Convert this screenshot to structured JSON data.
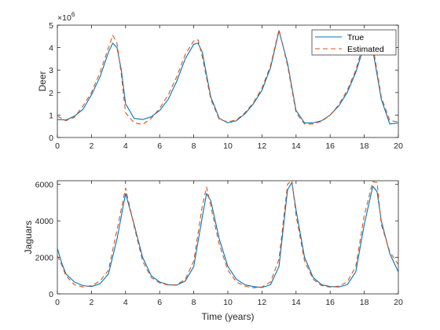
{
  "chart_data": [
    {
      "type": "line",
      "ylabel": "Deer",
      "xlabel": "",
      "y_exponent_label": "×10",
      "y_exponent_power": "6",
      "xlim": [
        0,
        20
      ],
      "ylim": [
        0,
        5000000
      ],
      "xticks": [
        0,
        2,
        4,
        6,
        8,
        10,
        12,
        14,
        16,
        18,
        20
      ],
      "yticks": [
        0,
        1000000,
        2000000,
        3000000,
        4000000,
        5000000
      ],
      "ytick_labels": [
        "0",
        "1",
        "2",
        "3",
        "4",
        "5"
      ],
      "legend_position": "top-right",
      "legend": [
        "True",
        "Estimated"
      ],
      "series": [
        {
          "name": "True",
          "color": "#0072BD",
          "style": "solid",
          "x": [
            0,
            0.5,
            1,
            1.5,
            2,
            2.5,
            3,
            3.25,
            3.5,
            3.75,
            4,
            4.5,
            5,
            5.5,
            6,
            6.5,
            7,
            7.5,
            8,
            8.25,
            8.5,
            9,
            9.5,
            10,
            10.5,
            11,
            11.5,
            12,
            12.5,
            13,
            13.5,
            14,
            14.5,
            15,
            15.5,
            16,
            16.5,
            17,
            17.5,
            18,
            18.5,
            19,
            19.5,
            20
          ],
          "y": [
            800000,
            780000,
            950000,
            1250000,
            1900000,
            2700000,
            3800000,
            4200000,
            4000000,
            3000000,
            1500000,
            850000,
            800000,
            920000,
            1200000,
            1700000,
            2500000,
            3500000,
            4150000,
            4200000,
            3800000,
            1800000,
            850000,
            650000,
            750000,
            1050000,
            1500000,
            2100000,
            3100000,
            4750000,
            3300000,
            1200000,
            650000,
            650000,
            750000,
            1000000,
            1400000,
            2000000,
            2900000,
            4100000,
            3900000,
            1700000,
            600000,
            650000
          ]
        },
        {
          "name": "Estimated",
          "color": "#D95319",
          "style": "dashed",
          "x": [
            0,
            0.5,
            1,
            1.5,
            2,
            2.5,
            3,
            3.25,
            3.5,
            3.75,
            4,
            4.5,
            5,
            5.5,
            6,
            6.5,
            7,
            7.5,
            8,
            8.25,
            8.5,
            9,
            9.5,
            10,
            10.5,
            11,
            11.5,
            12,
            12.5,
            13,
            13.5,
            14,
            14.5,
            15,
            15.5,
            16,
            16.5,
            17,
            17.5,
            18,
            18.5,
            19,
            19.5,
            20
          ],
          "y": [
            950000,
            750000,
            900000,
            1400000,
            2000000,
            2900000,
            4000000,
            4550000,
            4200000,
            2800000,
            1100000,
            650000,
            580000,
            850000,
            1300000,
            1900000,
            2700000,
            3700000,
            4300000,
            4350000,
            3600000,
            1700000,
            800000,
            700000,
            780000,
            1100000,
            1550000,
            2200000,
            3200000,
            4800000,
            3200000,
            1100000,
            600000,
            600000,
            720000,
            1000000,
            1450000,
            2100000,
            3000000,
            4300000,
            4100000,
            1800000,
            750000,
            700000
          ]
        }
      ]
    },
    {
      "type": "line",
      "ylabel": "Jaguars",
      "xlabel": "Time (years)",
      "xlim": [
        0,
        20
      ],
      "ylim": [
        0,
        6200
      ],
      "xticks": [
        0,
        2,
        4,
        6,
        8,
        10,
        12,
        14,
        16,
        18,
        20
      ],
      "yticks": [
        0,
        2000,
        4000,
        6000
      ],
      "ytick_labels": [
        "0",
        "2000",
        "4000",
        "6000"
      ],
      "series": [
        {
          "name": "True",
          "color": "#0072BD",
          "style": "solid",
          "x": [
            0,
            0.25,
            0.5,
            1,
            1.5,
            2,
            2.5,
            3,
            3.5,
            4,
            4.5,
            5,
            5.5,
            6,
            6.5,
            7,
            7.5,
            8,
            8.5,
            8.75,
            9,
            9.5,
            10,
            10.5,
            11,
            11.5,
            12,
            12.5,
            13,
            13.5,
            13.75,
            14,
            14.5,
            15,
            15.5,
            16,
            16.5,
            17,
            17.5,
            18,
            18.5,
            18.75,
            19,
            19.5,
            20
          ],
          "y": [
            2500,
            1700,
            1100,
            650,
            450,
            400,
            550,
            1100,
            3000,
            5500,
            3800,
            2000,
            1000,
            650,
            500,
            480,
            700,
            1500,
            4200,
            5500,
            5100,
            3000,
            1500,
            800,
            500,
            400,
            350,
            500,
            1500,
            5700,
            6100,
            4600,
            2000,
            900,
            500,
            400,
            380,
            500,
            1200,
            3800,
            5900,
            5600,
            4000,
            2200,
            1200
          ]
        },
        {
          "name": "Estimated",
          "color": "#D95319",
          "style": "dashed",
          "x": [
            0,
            0.25,
            0.5,
            1,
            1.5,
            2,
            2.5,
            3,
            3.5,
            4,
            4.5,
            5,
            5.5,
            6,
            6.5,
            7,
            7.5,
            8,
            8.5,
            8.75,
            9,
            9.5,
            10,
            10.5,
            11,
            11.5,
            12,
            12.5,
            13,
            13.5,
            13.75,
            14,
            14.5,
            15,
            15.5,
            16,
            16.5,
            17,
            17.5,
            18,
            18.5,
            18.75,
            19,
            19.5,
            20
          ],
          "y": [
            2100,
            1600,
            1000,
            500,
            380,
            450,
            700,
            1300,
            3500,
            5800,
            3700,
            1800,
            900,
            600,
            480,
            500,
            800,
            1800,
            4800,
            5850,
            4800,
            2700,
            1300,
            650,
            420,
            330,
            380,
            650,
            1900,
            6000,
            6250,
            4300,
            1800,
            800,
            450,
            370,
            420,
            650,
            1500,
            4300,
            6150,
            6100,
            3800,
            2300,
            1600
          ]
        }
      ]
    }
  ]
}
